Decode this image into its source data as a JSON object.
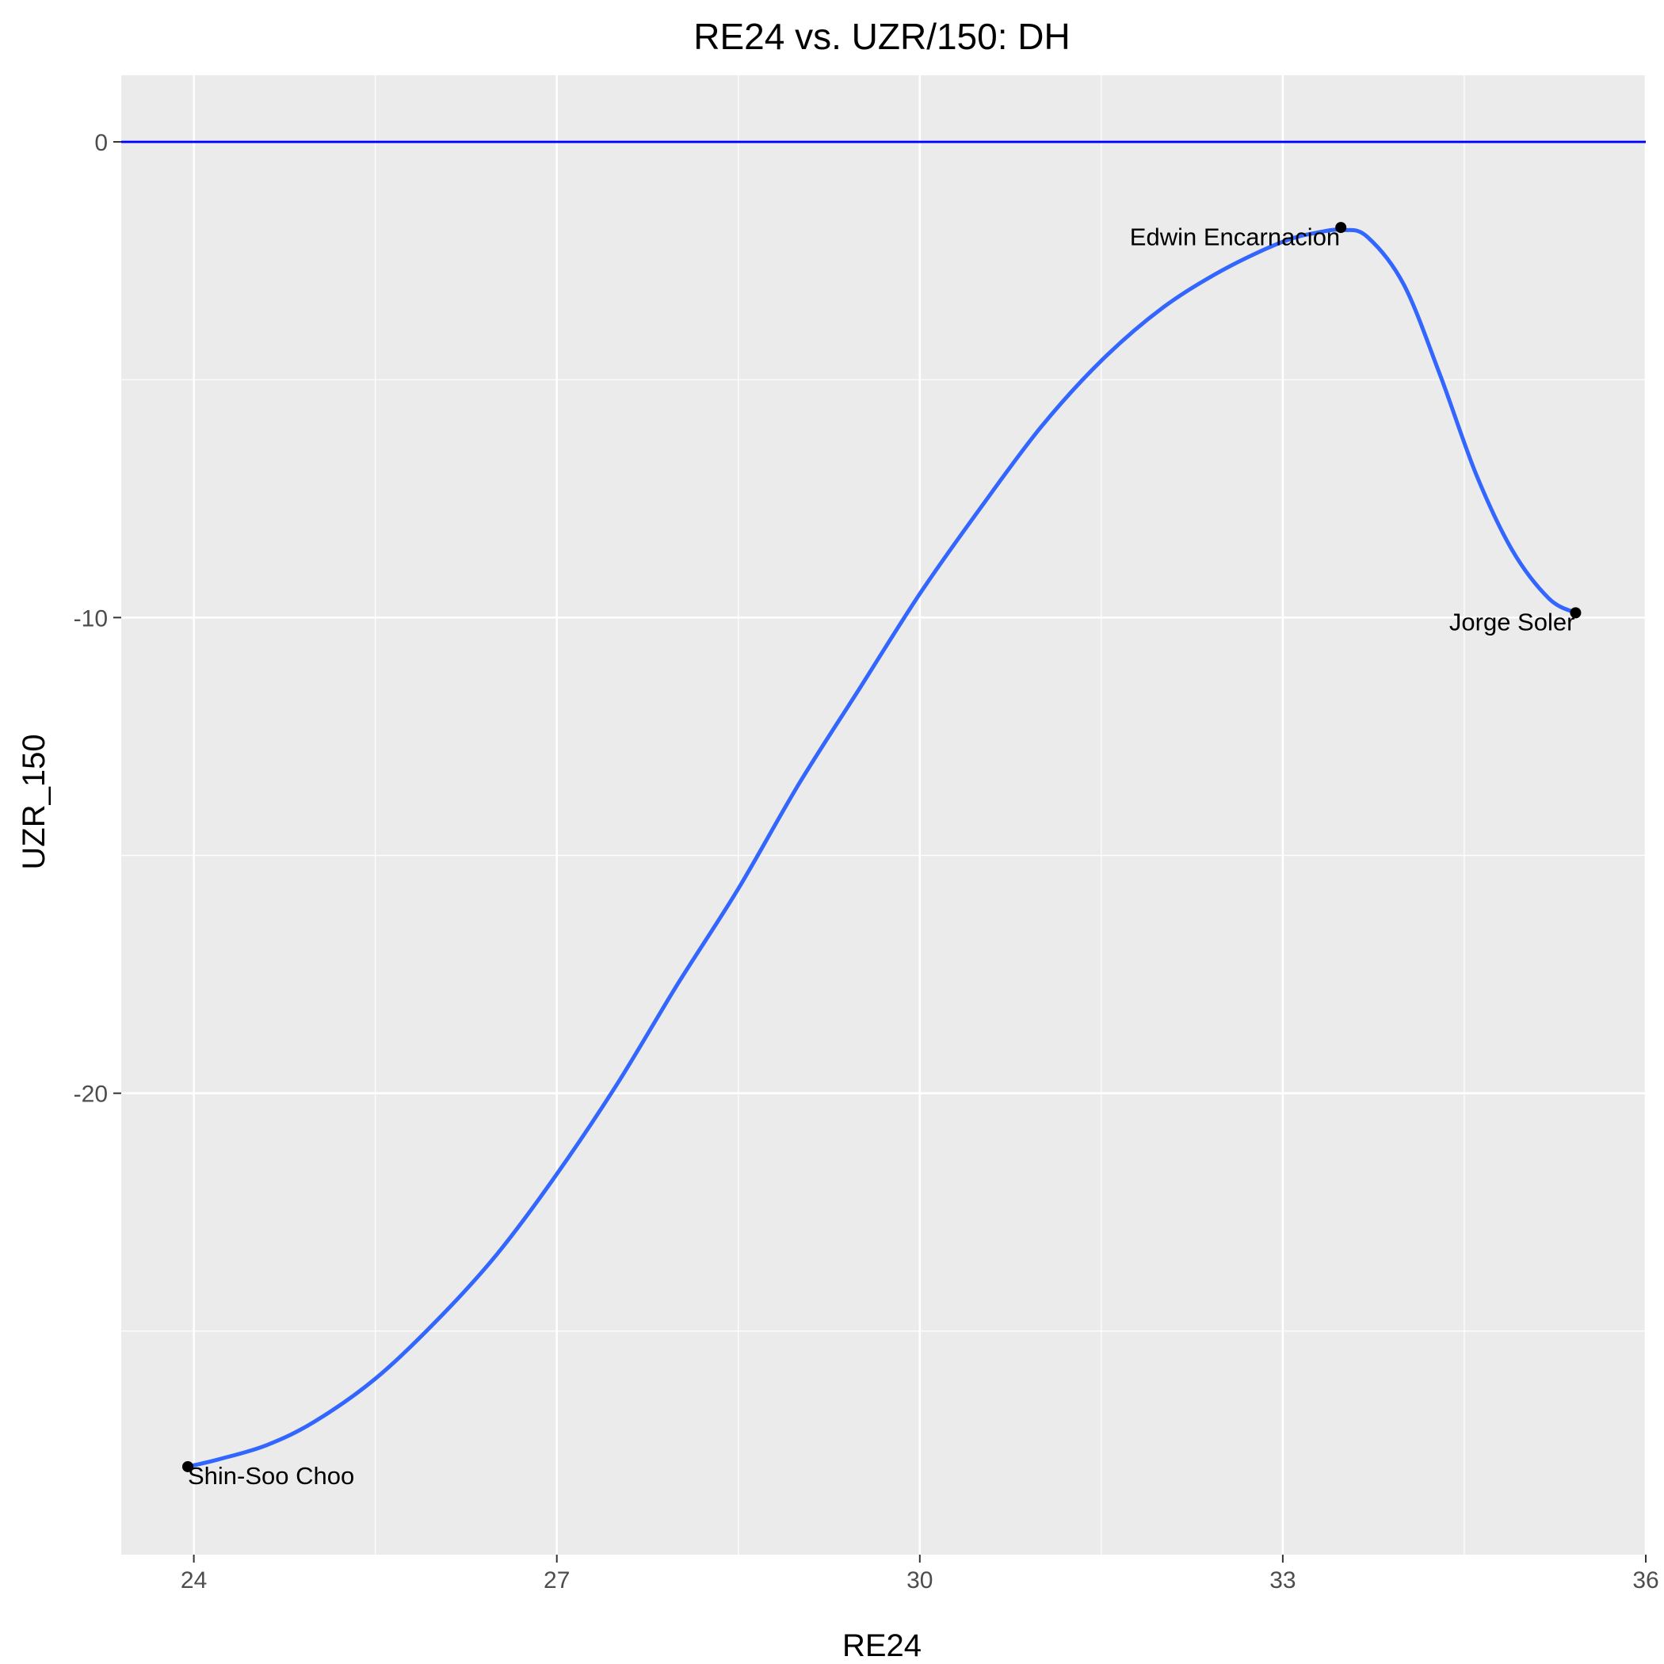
{
  "chart_data": {
    "type": "scatter",
    "title": "RE24 vs. UZR/150: DH",
    "xlabel": "RE24",
    "ylabel": "UZR_150",
    "xlim": [
      23.4,
      36.0
    ],
    "ylim": [
      -29.7,
      1.4
    ],
    "x_ticks": [
      24,
      27,
      30,
      33,
      36
    ],
    "x_tick_labels": [
      "24",
      "27",
      "30",
      "33",
      "36"
    ],
    "y_ticks": [
      0,
      -10,
      -20
    ],
    "y_tick_labels": [
      "0",
      "-10",
      "-20"
    ],
    "grid": true,
    "panel_color": "#ebebeb",
    "grid_color": "#ffffff",
    "points": [
      {
        "label": "Shin-Soo Choo",
        "x": 23.95,
        "y": -27.85
      },
      {
        "label": "Edwin Encarnacion",
        "x": 33.48,
        "y": -1.8
      },
      {
        "label": "Jorge Soler",
        "x": 35.42,
        "y": -9.9
      }
    ],
    "smooth_line": {
      "color": "#3366ff",
      "x": [
        23.95,
        24.2,
        24.6,
        25.0,
        25.5,
        26.0,
        26.5,
        27.0,
        27.5,
        28.0,
        28.5,
        29.0,
        29.5,
        30.0,
        30.5,
        31.0,
        31.5,
        32.0,
        32.5,
        33.0,
        33.3,
        33.5,
        33.7,
        34.0,
        34.3,
        34.6,
        34.9,
        35.2,
        35.42
      ],
      "y": [
        -27.85,
        -27.7,
        -27.4,
        -26.9,
        -26.0,
        -24.8,
        -23.4,
        -21.7,
        -19.8,
        -17.7,
        -15.7,
        -13.5,
        -11.5,
        -9.5,
        -7.7,
        -6.0,
        -4.6,
        -3.5,
        -2.7,
        -2.1,
        -1.9,
        -1.85,
        -2.0,
        -3.0,
        -4.9,
        -7.0,
        -8.6,
        -9.6,
        -9.9
      ]
    },
    "hline": {
      "y": 0,
      "color": "#0000ff"
    }
  }
}
